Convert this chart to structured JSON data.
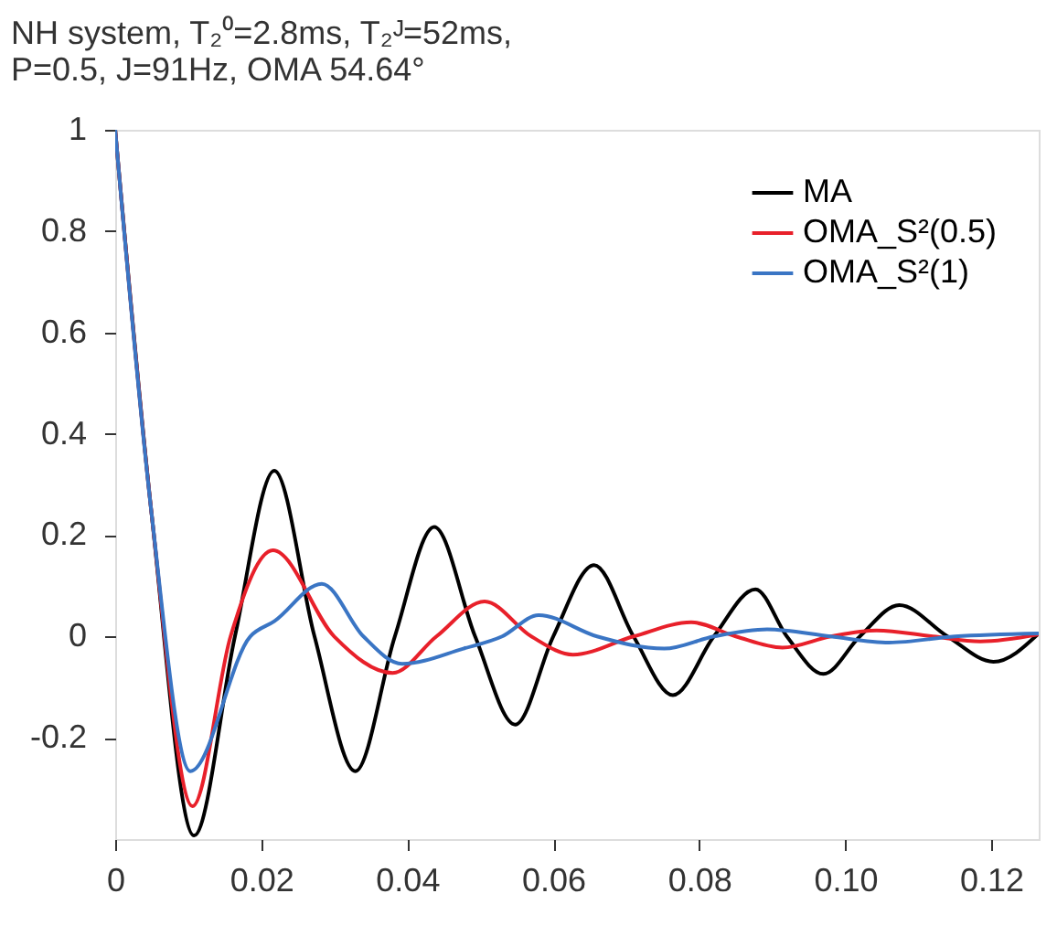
{
  "chart_data": {
    "type": "line",
    "title": "NH system, T₂⁰=2.8ms, T₂ᴶ=52ms, P=0.5, J=91Hz, OMA 54.64°",
    "xlim": [
      0,
      0.1265
    ],
    "xticks": [
      0,
      0.02,
      0.04,
      0.06,
      0.08,
      {
        "value": 0.1,
        "label": "0.10"
      },
      0.12
    ],
    "ylim": [
      -0.4,
      1
    ],
    "yticks": [
      -0.2,
      0,
      0.2,
      0.4,
      0.6,
      0.8,
      1
    ],
    "grid": false,
    "legend": "top right",
    "line_style": "solid",
    "marker": "none",
    "series": [
      {
        "name": "MA",
        "color": "#000000",
        "x": [
          0,
          0.005,
          0.0108,
          0.0164,
          0.0218,
          0.0273,
          0.0329,
          0.0383,
          0.0437,
          0.0493,
          0.0548,
          0.06,
          0.0656,
          0.071,
          0.0764,
          0.082,
          0.0877,
          0.092,
          0.097,
          0.102,
          0.1074,
          0.114,
          0.1203,
          0.1265
        ],
        "values": [
          1,
          0.24,
          -0.393,
          0,
          0.327,
          0,
          -0.266,
          0,
          0.216,
          0,
          -0.174,
          0,
          0.141,
          0,
          -0.116,
          0,
          0.093,
          0,
          -0.074,
          0,
          0.062,
          0,
          -0.05,
          0.006
        ]
      },
      {
        "name": "OMA_S²(0.5)",
        "color": "#e8202a",
        "x": [
          0,
          0.005,
          0.0106,
          0.0158,
          0.0216,
          0.03,
          0.038,
          0.044,
          0.0506,
          0.057,
          0.0627,
          0.071,
          0.0789,
          0.085,
          0.0914,
          0.098,
          0.1043,
          0.112,
          0.1185,
          0.1265
        ],
        "values": [
          1,
          0.24,
          -0.335,
          0,
          0.17,
          0,
          -0.072,
          0,
          0.069,
          0,
          -0.036,
          0,
          0.028,
          0,
          -0.022,
          0,
          0.012,
          0,
          -0.01,
          0.004
        ]
      },
      {
        "name": "OMA_S²(1)",
        "color": "#3a75c4",
        "x": [
          0,
          0.005,
          0.0103,
          0.0185,
          0.0218,
          0.0283,
          0.034,
          0.0393,
          0.0477,
          0.053,
          0.058,
          0.066,
          0.0752,
          0.082,
          0.0893,
          0.098,
          0.106,
          0.115,
          0.1265
        ],
        "values": [
          1,
          0.24,
          -0.266,
          0,
          0.03,
          0.104,
          0,
          -0.054,
          -0.024,
          0,
          0.042,
          0,
          -0.024,
          0,
          0.014,
          0,
          -0.012,
          0,
          0.006
        ]
      }
    ]
  }
}
